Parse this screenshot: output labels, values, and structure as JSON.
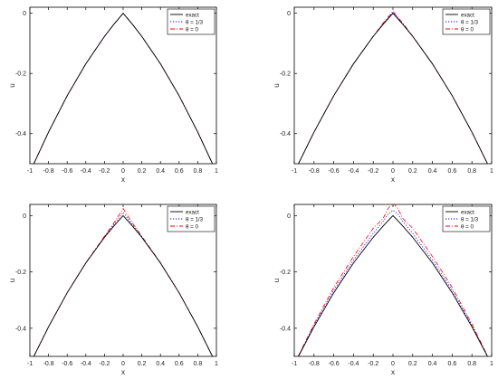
{
  "colors": {
    "exact": "#000000",
    "theta13": "#0000ff",
    "theta0": "#ff0000",
    "axis": "#000000",
    "background": "#ffffff"
  },
  "legend_labels": [
    "exact",
    "θ = 1/3",
    "θ = 0"
  ],
  "chart_data": [
    {
      "type": "line",
      "panel": "top-left",
      "xlabel": "x",
      "ylabel": "u",
      "xlim": [
        -1,
        1
      ],
      "ylim": [
        -0.5,
        0.02
      ],
      "xticks": [
        -1,
        -0.8,
        -0.6,
        -0.4,
        -0.2,
        0,
        0.2,
        0.4,
        0.6,
        0.8,
        1
      ],
      "xticklabels": [
        "-1",
        "-0.8",
        "-0.6",
        "-0.4",
        "-0.2",
        "0",
        "0.2",
        "0.4",
        "0.6",
        "0.8",
        "1"
      ],
      "yticks": [
        0,
        -0.2,
        -0.4
      ],
      "yticklabels": [
        "0",
        "-0.2",
        "-0.4"
      ],
      "grid": false,
      "legend_position": "top-right",
      "x": [
        -1,
        -0.8,
        -0.6,
        -0.4,
        -0.2,
        -0.1,
        0,
        0.1,
        0.2,
        0.4,
        0.6,
        0.8,
        1
      ],
      "series": [
        {
          "name": "exact",
          "style": "solid",
          "values": [
            -0.528,
            -0.395,
            -0.274,
            -0.168,
            -0.077,
            -0.037,
            0,
            -0.037,
            -0.077,
            -0.168,
            -0.274,
            -0.395,
            -0.528
          ]
        },
        {
          "name": "θ = 1/3",
          "style": "dotted",
          "values": [
            -0.528,
            -0.395,
            -0.274,
            -0.168,
            -0.077,
            -0.037,
            0,
            -0.037,
            -0.077,
            -0.168,
            -0.274,
            -0.395,
            -0.528
          ]
        },
        {
          "name": "θ = 0",
          "style": "dashdot",
          "values": [
            -0.528,
            -0.395,
            -0.274,
            -0.168,
            -0.077,
            -0.037,
            0,
            -0.037,
            -0.077,
            -0.168,
            -0.274,
            -0.395,
            -0.528
          ]
        }
      ]
    },
    {
      "type": "line",
      "panel": "top-right",
      "xlabel": "x",
      "ylabel": "u",
      "xlim": [
        -1,
        1
      ],
      "ylim": [
        -0.5,
        0.02
      ],
      "xticks": [
        -1,
        -0.8,
        -0.6,
        -0.4,
        -0.2,
        0,
        0.2,
        0.4,
        0.6,
        0.8,
        1
      ],
      "xticklabels": [
        "-1",
        "-0.8",
        "-0.6",
        "-0.4",
        "-0.2",
        "0",
        "0.2",
        "0.4",
        "0.6",
        "0.8",
        "1"
      ],
      "yticks": [
        0,
        -0.2,
        -0.4
      ],
      "yticklabels": [
        "0",
        "-0.2",
        "-0.4"
      ],
      "grid": false,
      "legend_position": "top-right",
      "x": [
        -1,
        -0.8,
        -0.6,
        -0.4,
        -0.2,
        -0.1,
        0,
        0.1,
        0.2,
        0.4,
        0.6,
        0.8,
        1
      ],
      "series": [
        {
          "name": "exact",
          "style": "solid",
          "values": [
            -0.528,
            -0.395,
            -0.274,
            -0.168,
            -0.077,
            -0.037,
            0,
            -0.037,
            -0.077,
            -0.168,
            -0.274,
            -0.395,
            -0.528
          ]
        },
        {
          "name": "θ = 1/3",
          "style": "dotted",
          "values": [
            -0.528,
            -0.395,
            -0.274,
            -0.168,
            -0.077,
            -0.035,
            0.003,
            -0.035,
            -0.077,
            -0.168,
            -0.274,
            -0.395,
            -0.528
          ]
        },
        {
          "name": "θ = 0",
          "style": "dashdot",
          "values": [
            -0.528,
            -0.395,
            -0.274,
            -0.168,
            -0.076,
            -0.033,
            0.007,
            -0.033,
            -0.076,
            -0.168,
            -0.274,
            -0.395,
            -0.528
          ]
        }
      ]
    },
    {
      "type": "line",
      "panel": "bottom-left",
      "xlabel": "x",
      "ylabel": "u",
      "xlim": [
        -1,
        1
      ],
      "ylim": [
        -0.5,
        0.04
      ],
      "xticks": [
        -1,
        -0.8,
        -0.6,
        -0.4,
        -0.2,
        0,
        0.2,
        0.4,
        0.6,
        0.8,
        1
      ],
      "xticklabels": [
        "-1",
        "-0.8",
        "-0.6",
        "-0.4",
        "-0.2",
        "0",
        "0.2",
        "0.4",
        "0.6",
        "0.8",
        "1"
      ],
      "yticks": [
        0,
        -0.2,
        -0.4
      ],
      "yticklabels": [
        "0",
        "-0.2",
        "-0.4"
      ],
      "grid": false,
      "legend_position": "top-right",
      "x": [
        -1,
        -0.8,
        -0.6,
        -0.4,
        -0.2,
        -0.1,
        0,
        0.1,
        0.2,
        0.4,
        0.6,
        0.8,
        1
      ],
      "series": [
        {
          "name": "exact",
          "style": "solid",
          "values": [
            -0.528,
            -0.395,
            -0.274,
            -0.168,
            -0.077,
            -0.037,
            0,
            -0.037,
            -0.077,
            -0.168,
            -0.274,
            -0.395,
            -0.528
          ]
        },
        {
          "name": "θ = 1/3",
          "style": "dotted",
          "values": [
            -0.528,
            -0.395,
            -0.274,
            -0.168,
            -0.075,
            -0.032,
            0.012,
            -0.032,
            -0.075,
            -0.168,
            -0.274,
            -0.395,
            -0.528
          ]
        },
        {
          "name": "θ = 0",
          "style": "dashdot",
          "values": [
            -0.528,
            -0.395,
            -0.274,
            -0.167,
            -0.073,
            -0.026,
            0.025,
            -0.026,
            -0.073,
            -0.167,
            -0.274,
            -0.395,
            -0.528
          ]
        }
      ]
    },
    {
      "type": "line",
      "panel": "bottom-right",
      "xlabel": "x",
      "ylabel": "u",
      "xlim": [
        -1,
        1
      ],
      "ylim": [
        -0.5,
        0.04
      ],
      "xticks": [
        -1,
        -0.8,
        -0.6,
        -0.4,
        -0.2,
        0,
        0.2,
        0.4,
        0.6,
        0.8,
        1
      ],
      "xticklabels": [
        "-1",
        "-0.8",
        "-0.6",
        "-0.4",
        "-0.2",
        "0",
        "0.2",
        "0.4",
        "0.6",
        "0.8",
        "1"
      ],
      "yticks": [
        0,
        -0.2,
        -0.4
      ],
      "yticklabels": [
        "0",
        "-0.2",
        "-0.4"
      ],
      "grid": false,
      "legend_position": "top-right",
      "x": [
        -1,
        -0.8,
        -0.6,
        -0.4,
        -0.2,
        -0.1,
        -0.05,
        0,
        0.05,
        0.1,
        0.2,
        0.4,
        0.6,
        0.8,
        1
      ],
      "series": [
        {
          "name": "exact",
          "style": "solid",
          "values": [
            -0.528,
            -0.395,
            -0.274,
            -0.168,
            -0.077,
            -0.037,
            -0.018,
            0,
            -0.018,
            -0.037,
            -0.077,
            -0.168,
            -0.274,
            -0.395,
            -0.528
          ]
        },
        {
          "name": "θ = 1/3",
          "style": "dotted",
          "values": [
            -0.528,
            -0.39,
            -0.265,
            -0.158,
            -0.063,
            -0.02,
            0.005,
            0.02,
            0.005,
            -0.02,
            -0.063,
            -0.158,
            -0.265,
            -0.39,
            -0.528
          ]
        },
        {
          "name": "θ = 0",
          "style": "dashdot",
          "values": [
            -0.528,
            -0.385,
            -0.255,
            -0.145,
            -0.045,
            -0.01,
            0.025,
            0.045,
            0.025,
            -0.01,
            -0.045,
            -0.145,
            -0.255,
            -0.385,
            -0.528
          ]
        }
      ]
    }
  ]
}
